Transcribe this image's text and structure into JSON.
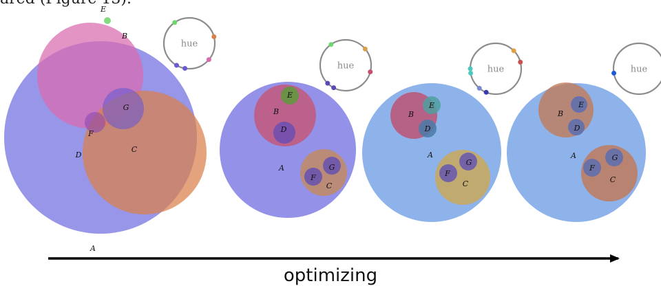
{
  "caption_fragment": "ared (Figure 13).",
  "axis_label": "optimizing",
  "hue_label": "hue",
  "colors": {
    "wheel_stroke": "#8c8c8c",
    "arrow": "#000000"
  },
  "panels": [
    {
      "name": "panel-1",
      "circles": [
        {
          "id": "A",
          "color": "#6f6ee0",
          "opacity": 0.72
        },
        {
          "id": "B",
          "color": "#d96aae",
          "opacity": 0.72
        },
        {
          "id": "C",
          "color": "#d9804a",
          "opacity": 0.72
        },
        {
          "id": "G",
          "color": "#6a5ad0",
          "opacity": 0.6
        },
        {
          "id": "F",
          "color": "#8a4ab0",
          "opacity": 0.6
        },
        {
          "id": "D",
          "color": "#7a6ae0",
          "opacity": 0.0
        },
        {
          "id": "E",
          "color": "#6fd66a",
          "opacity": 0.85
        }
      ],
      "labels": [
        "A",
        "B",
        "C",
        "D",
        "E",
        "F",
        "G"
      ]
    },
    {
      "name": "panel-2",
      "circles": [
        {
          "id": "A",
          "color": "#6f6ee0",
          "opacity": 0.75
        },
        {
          "id": "B",
          "color": "#c8506e",
          "opacity": 0.75
        },
        {
          "id": "E",
          "color": "#5c9a3a",
          "opacity": 0.85
        },
        {
          "id": "D",
          "color": "#5a4ab8",
          "opacity": 0.7
        },
        {
          "id": "C",
          "color": "#c48a5a",
          "opacity": 0.8
        },
        {
          "id": "G",
          "color": "#5a4ab8",
          "opacity": 0.75
        },
        {
          "id": "F",
          "color": "#5a4ab8",
          "opacity": 0.75
        }
      ],
      "labels": [
        "A",
        "B",
        "C",
        "D",
        "E",
        "F",
        "G"
      ]
    },
    {
      "name": "panel-3",
      "circles": [
        {
          "id": "A",
          "color": "#7aa6e6",
          "opacity": 0.85
        },
        {
          "id": "B",
          "color": "#c04e6e",
          "opacity": 0.8
        },
        {
          "id": "E",
          "color": "#4fa0a0",
          "opacity": 0.85
        },
        {
          "id": "D",
          "color": "#4a7aa8",
          "opacity": 0.85
        },
        {
          "id": "C",
          "color": "#c9a85a",
          "opacity": 0.85
        },
        {
          "id": "F",
          "color": "#5a4ab8",
          "opacity": 0.75
        },
        {
          "id": "G",
          "color": "#5a4ab8",
          "opacity": 0.75
        }
      ],
      "labels": [
        "A",
        "B",
        "C",
        "D",
        "E",
        "F",
        "G"
      ]
    },
    {
      "name": "panel-4",
      "circles": [
        {
          "id": "A",
          "color": "#7aa6e6",
          "opacity": 0.85
        },
        {
          "id": "B",
          "color": "#c07a5a",
          "opacity": 0.8
        },
        {
          "id": "E",
          "color": "#5a6eb0",
          "opacity": 0.85
        },
        {
          "id": "D",
          "color": "#5a6eb0",
          "opacity": 0.85
        },
        {
          "id": "C",
          "color": "#c07a5a",
          "opacity": 0.85
        },
        {
          "id": "F",
          "color": "#5a6eb0",
          "opacity": 0.85
        },
        {
          "id": "G",
          "color": "#5a6eb0",
          "opacity": 0.85
        }
      ],
      "labels": [
        "A",
        "B",
        "C",
        "D",
        "E",
        "F",
        "G"
      ]
    }
  ],
  "hue_wheels": [
    {
      "name": "hue-wheel-1",
      "dots": [
        "#6fd66a",
        "#d9804a",
        "#d96aae",
        "#6a5ad0",
        "#6a5ad0"
      ]
    },
    {
      "name": "hue-wheel-2",
      "dots": [
        "#6fd66a",
        "#d9a04a",
        "#c8506e",
        "#5a4ab8",
        "#5a4ab8"
      ]
    },
    {
      "name": "hue-wheel-3",
      "dots": [
        "#e0a040",
        "#c8504e",
        "#4fc8c0",
        "#4fc8c0",
        "#7a8ad0",
        "#3a3ab0"
      ]
    },
    {
      "name": "hue-wheel-4",
      "dots": [
        "#1a5ad8"
      ]
    }
  ]
}
